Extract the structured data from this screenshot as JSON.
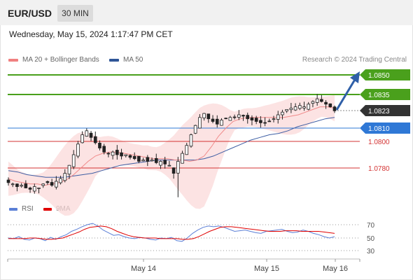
{
  "header": {
    "symbol": "EUR/USD",
    "timeframe": "30 MIN",
    "datetime": "Wednesday, May 15, 2024 1:17:47 PM CET"
  },
  "legend": {
    "ma20": {
      "label": "MA 20 + Bollinger Bands",
      "color": "#f08080"
    },
    "ma50": {
      "label": "MA 50",
      "color": "#2f5597"
    },
    "credit": "Research © 2024 Trading Central"
  },
  "rsi_legend": {
    "rsi": {
      "label": "RSI",
      "color": "#5b7fd6"
    },
    "ma9": {
      "label": "9MA",
      "color": "#e00000"
    }
  },
  "price_levels": [
    {
      "value": "1.0850",
      "kind": "resistance",
      "color": "#4aa01c",
      "badge": true
    },
    {
      "value": "1.0835",
      "kind": "resistance",
      "color": "#4aa01c",
      "badge": true
    },
    {
      "value": "1.0823",
      "kind": "current",
      "color": "#333333",
      "badge": true
    },
    {
      "value": "1.0810",
      "kind": "pivot",
      "color": "#2f78d6",
      "badge": true
    },
    {
      "value": "1.0800",
      "kind": "support",
      "color": "#d33333",
      "badge": false
    },
    {
      "value": "1.0780",
      "kind": "support",
      "color": "#d33333",
      "badge": false
    }
  ],
  "rsi_ticks": [
    "70",
    "50",
    "30"
  ],
  "x_labels": [
    "May 14",
    "May 15",
    "May 16"
  ],
  "chart_data": {
    "type": "candlestick",
    "y_unit": "EUR/USD price",
    "ylim": [
      1.0758,
      1.0862
    ],
    "trend_arrow": {
      "from": 1.0826,
      "to": 1.085,
      "color": "#2f5fa8"
    },
    "price_path": [
      1.0769,
      1.0768,
      1.0766,
      1.0767,
      1.0765,
      1.0764,
      1.0766,
      1.0765,
      1.0768,
      1.0769,
      1.0767,
      1.077,
      1.0772,
      1.0776,
      1.0782,
      1.079,
      1.0798,
      1.0805,
      1.0808,
      1.0803,
      1.0799,
      1.0795,
      1.0792,
      1.0791,
      1.0792,
      1.079,
      1.0789,
      1.079,
      1.0788,
      1.0787,
      1.0785,
      1.0786,
      1.0785,
      1.0786,
      1.0784,
      1.0785,
      1.0783,
      1.0782,
      1.0776,
      1.0785,
      1.0791,
      1.0797,
      1.0805,
      1.0812,
      1.0818,
      1.0821,
      1.0817,
      1.0815,
      1.0813,
      1.0816,
      1.0817,
      1.0818,
      1.0818,
      1.082,
      1.0819,
      1.0817,
      1.0816,
      1.0815,
      1.0814,
      1.0814,
      1.0815,
      1.0817,
      1.082,
      1.0822,
      1.0824,
      1.0825,
      1.0826,
      1.0827,
      1.0826,
      1.0828,
      1.083,
      1.0832,
      1.083,
      1.0828,
      1.0826,
      1.0823
    ],
    "ma20": [
      1.0772,
      1.077,
      1.0769,
      1.0768,
      1.0768,
      1.0767,
      1.0768,
      1.0769,
      1.0771,
      1.0775,
      1.078,
      1.0785,
      1.0789,
      1.0791,
      1.0792,
      1.0792,
      1.0791,
      1.079,
      1.0789,
      1.0788,
      1.0787,
      1.0787,
      1.0787,
      1.0786,
      1.0786,
      1.0785,
      1.0786,
      1.0789,
      1.0796,
      1.0804,
      1.081,
      1.0815,
      1.0817,
      1.0818,
      1.0818,
      1.0818,
      1.0818,
      1.0818,
      1.0818,
      1.0819,
      1.082,
      1.0822,
      1.0824,
      1.0826,
      1.0826,
      1.0825
    ],
    "ma50": [
      1.0778,
      1.0777,
      1.0775,
      1.0774,
      1.0773,
      1.0773,
      1.0773,
      1.0774,
      1.0775,
      1.0776,
      1.0778,
      1.078,
      1.0782,
      1.0783,
      1.0784,
      1.0785,
      1.0786,
      1.0786,
      1.0786,
      1.0786,
      1.0786,
      1.0787,
      1.0789,
      1.0792,
      1.0795,
      1.0798,
      1.0801,
      1.0803,
      1.0805,
      1.0806,
      1.0808,
      1.0811,
      1.0813,
      1.0815,
      1.0817,
      1.0818
    ],
    "rsi": [
      50,
      49,
      52,
      48,
      47,
      50,
      49,
      46,
      51,
      48,
      52,
      55,
      60,
      63,
      67,
      70,
      72,
      68,
      62,
      58,
      54,
      55,
      52,
      50,
      49,
      51,
      50,
      48,
      47,
      50,
      49,
      51,
      46,
      45,
      50,
      57,
      62,
      66,
      68,
      67,
      68,
      66,
      63,
      60,
      61,
      62,
      60,
      58,
      57,
      60,
      61,
      62,
      63,
      60,
      58,
      59,
      62,
      60,
      57,
      55,
      52,
      50,
      52
    ],
    "ma9": [
      49,
      49,
      49,
      49,
      50,
      50,
      49,
      48,
      48,
      49,
      50,
      53,
      56,
      59,
      63,
      66,
      67,
      68,
      67,
      64,
      60,
      57,
      54,
      52,
      51,
      50,
      50,
      50,
      49,
      49,
      49,
      49,
      48,
      48,
      49,
      52,
      56,
      60,
      63,
      66,
      67,
      67,
      66,
      65,
      64,
      63,
      62,
      61,
      60,
      60,
      60,
      61,
      61,
      61,
      60,
      60,
      60,
      60,
      59,
      58,
      57
    ]
  }
}
